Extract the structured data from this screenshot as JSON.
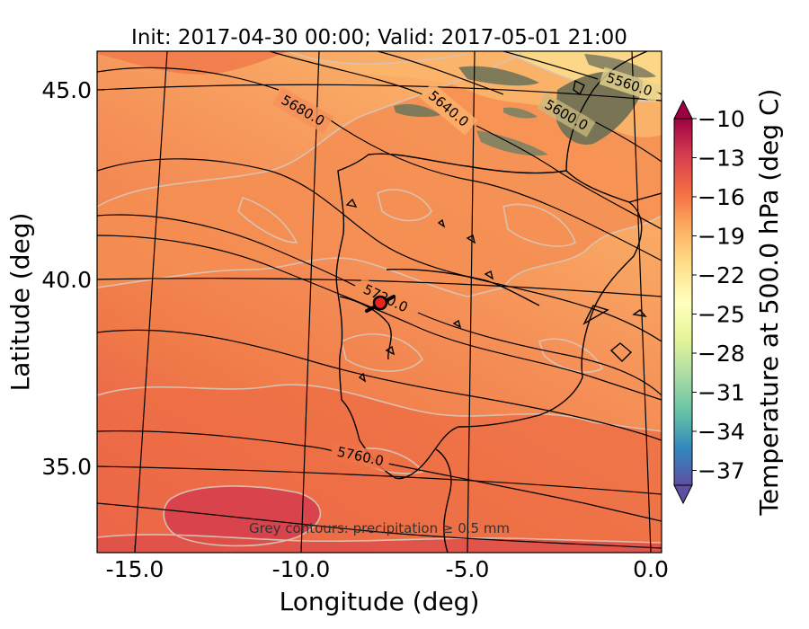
{
  "title": "Init: 2017-04-30 00:00; Valid: 2017-05-01 21:00",
  "x_axis": {
    "label": "Longitude (deg)",
    "ticks": [
      "-15.0",
      "-10.0",
      "-5.0",
      "0.0"
    ]
  },
  "y_axis": {
    "label": "Latitude (deg)",
    "ticks": [
      "45.0",
      "40.0",
      "35.0"
    ]
  },
  "colorbar": {
    "label": "Temperature at 500.0 hPa (deg C)",
    "ticks": [
      "−10",
      "−13",
      "−16",
      "−19",
      "−22",
      "−25",
      "−28",
      "−31",
      "−34",
      "−37"
    ],
    "colormap": "Spectral_r",
    "extend": "both",
    "stops": [
      "#9e0142",
      "#d53e4f",
      "#f46d43",
      "#fdae61",
      "#fee08b",
      "#ffffbf",
      "#e6f598",
      "#abdda4",
      "#66c2a5",
      "#3288bd",
      "#5e4fa2"
    ]
  },
  "geopotential_labels": [
    "5680.0",
    "5640.0",
    "5600.0",
    "5560.0",
    "5720.0",
    "5760.0"
  ],
  "note": "Grey contours: precipitation ≥ 0.5 mm",
  "marker": {
    "color": "#e8241c",
    "edge_color": "#000000"
  }
}
